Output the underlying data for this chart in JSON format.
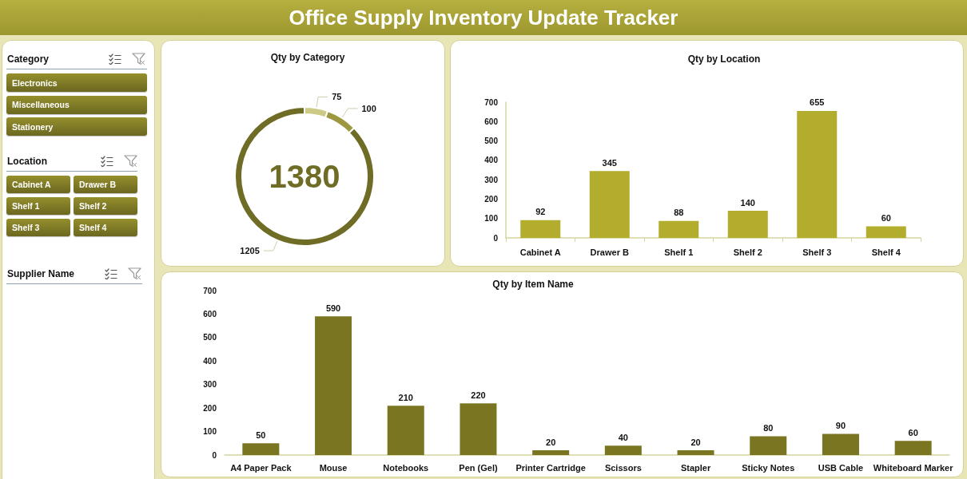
{
  "chart_data": [
    {
      "type": "other",
      "title": "Office Supply Inventory Update Tracker"
    },
    {
      "type": "other",
      "title": "Category",
      "annotations": [
        "Electronics",
        "Miscellaneous",
        "Stationery"
      ]
    },
    {
      "type": "other",
      "title": "Location",
      "annotations": [
        "Cabinet A",
        "Drawer B",
        "Shelf 1",
        "Shelf 2",
        "Shelf 3",
        "Shelf 4"
      ]
    },
    {
      "type": "other",
      "title": "Supplier Name"
    },
    {
      "type": "donut",
      "title": "Qty by Category",
      "categories": [
        null,
        null,
        null
      ],
      "values": [
        75,
        100,
        1205
      ],
      "colors": [
        "#cdca86",
        "#9d9840",
        "#6f6c26"
      ],
      "data_labels": true,
      "annotations": [
        "1380"
      ]
    },
    {
      "type": "bar",
      "title": "Qty by Location",
      "categories": [
        "Cabinet A",
        "Drawer B",
        "Shelf 1",
        "Shelf 2",
        "Shelf 3",
        "Shelf 4"
      ],
      "values": [
        92,
        345,
        88,
        140,
        655,
        60
      ],
      "color": "#b2ad2d",
      "ylim": [
        0,
        700
      ],
      "yticks": [
        0,
        100,
        200,
        300,
        400,
        500,
        600,
        700
      ],
      "data_labels": true
    },
    {
      "type": "bar",
      "title": "Qty by Item Name",
      "categories": [
        "A4 Paper Pack",
        "Mouse",
        "Notebooks",
        "Pen (Gel)",
        "Printer Cartridge",
        "Scissors",
        "Stapler",
        "Sticky Notes",
        "USB Cable",
        "Whiteboard Marker"
      ],
      "values": [
        50,
        590,
        210,
        220,
        20,
        40,
        20,
        80,
        90,
        60
      ],
      "color": "#7a7521",
      "ylim": [
        0,
        700
      ],
      "yticks": [
        0,
        100,
        200,
        300,
        400,
        500,
        600,
        700
      ],
      "data_labels": true
    }
  ]
}
